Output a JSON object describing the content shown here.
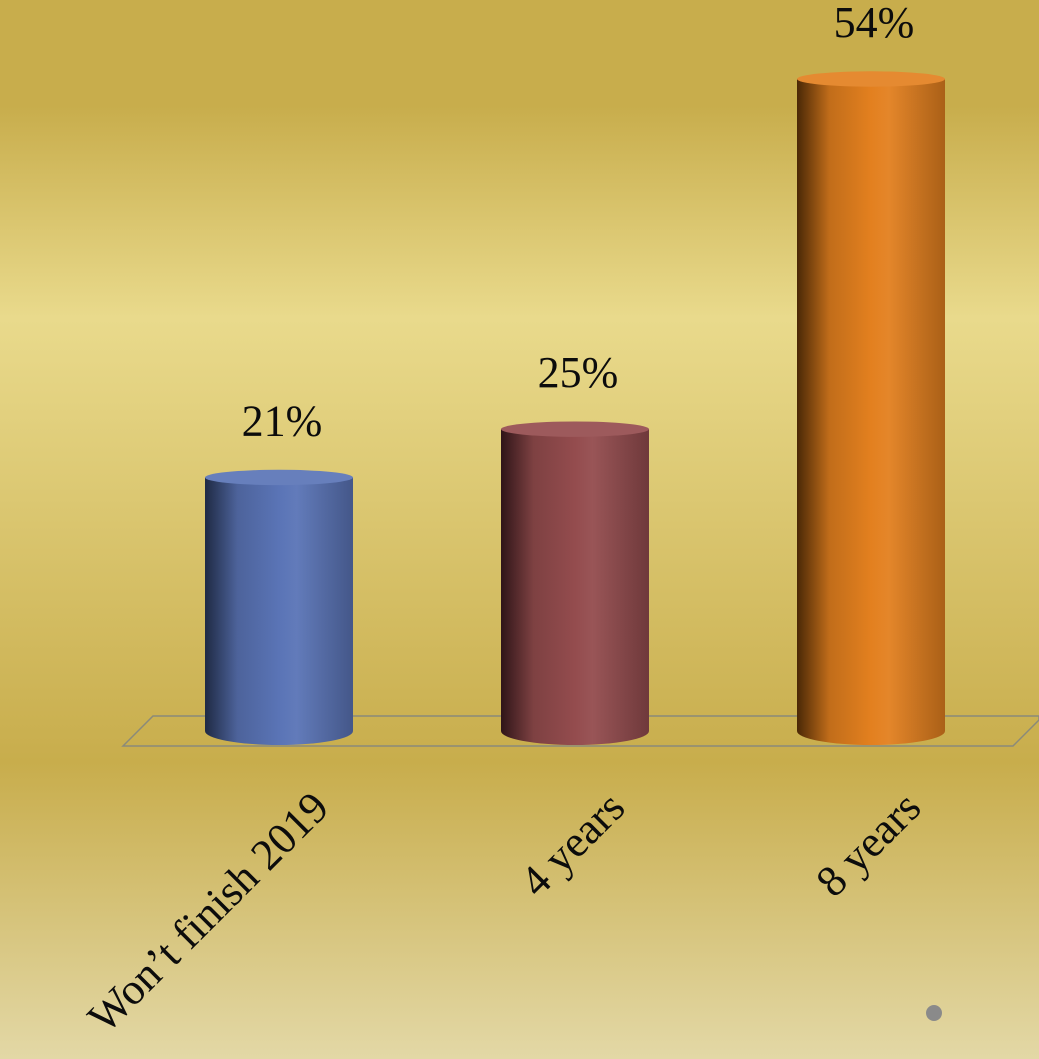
{
  "chart_data": {
    "type": "bar",
    "style": "3d-cylinder",
    "categories": [
      "Won’t finish 2019",
      "4 years",
      "8 years"
    ],
    "values": [
      21,
      25,
      54
    ],
    "value_labels": [
      "21%",
      "25%",
      "54%"
    ],
    "unit": "%",
    "ylim": [
      0,
      54
    ],
    "grid": false,
    "legend": "none",
    "title": "",
    "xlabel": "",
    "ylabel": "",
    "colors": {
      "bars": [
        "#5a74b6",
        "#944c4e",
        "#e3801f"
      ],
      "bar_shadows": [
        "#1f2a44",
        "#2f1518",
        "#4a2806"
      ],
      "background_top": "#c8ad4c",
      "background_mid": "#e9da8c",
      "background_bottom": "#e3d8a6",
      "floor_line": "#8a8a7a",
      "text": "#0c0c0c",
      "dot": "#8a8a8a"
    }
  }
}
